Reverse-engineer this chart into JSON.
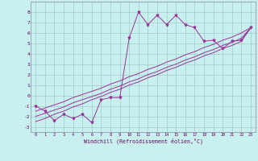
{
  "xlabel": "Windchill (Refroidissement éolien,°C)",
  "bg_color": "#c8f0ee",
  "grid_color": "#a0ccc8",
  "line_color": "#993399",
  "x_data": [
    0,
    1,
    2,
    3,
    4,
    5,
    6,
    7,
    8,
    9,
    10,
    11,
    12,
    13,
    14,
    15,
    16,
    17,
    18,
    19,
    20,
    21,
    22,
    23
  ],
  "y_zigzag": [
    -1.0,
    -1.5,
    -2.4,
    -1.8,
    -2.2,
    -1.8,
    -2.6,
    -0.4,
    -0.2,
    -0.2,
    5.5,
    8.0,
    6.8,
    7.7,
    6.8,
    7.7,
    6.8,
    6.5,
    5.2,
    5.3,
    4.5,
    5.2,
    5.3,
    6.5
  ],
  "y_line1": [
    -2.5,
    -2.2,
    -1.8,
    -1.5,
    -1.1,
    -0.8,
    -0.4,
    -0.1,
    0.3,
    0.6,
    1.0,
    1.3,
    1.7,
    2.0,
    2.4,
    2.7,
    3.1,
    3.4,
    3.8,
    4.1,
    4.5,
    4.8,
    5.2,
    6.5
  ],
  "y_line2": [
    -2.0,
    -1.7,
    -1.4,
    -1.1,
    -0.7,
    -0.4,
    -0.1,
    0.2,
    0.6,
    0.9,
    1.3,
    1.6,
    2.0,
    2.3,
    2.7,
    3.0,
    3.4,
    3.7,
    4.1,
    4.4,
    4.8,
    5.1,
    5.5,
    6.5
  ],
  "y_line3": [
    -1.5,
    -1.2,
    -0.9,
    -0.6,
    -0.2,
    0.1,
    0.4,
    0.7,
    1.1,
    1.4,
    1.8,
    2.1,
    2.5,
    2.8,
    3.2,
    3.5,
    3.9,
    4.2,
    4.6,
    4.9,
    5.3,
    5.6,
    6.0,
    6.5
  ],
  "ylim": [
    -3.5,
    9.0
  ],
  "xlim": [
    -0.5,
    23.5
  ],
  "yticks": [
    -3,
    -2,
    -1,
    0,
    1,
    2,
    3,
    4,
    5,
    6,
    7,
    8
  ],
  "xticks": [
    0,
    1,
    2,
    3,
    4,
    5,
    6,
    7,
    8,
    9,
    10,
    11,
    12,
    13,
    14,
    15,
    16,
    17,
    18,
    19,
    20,
    21,
    22,
    23
  ]
}
